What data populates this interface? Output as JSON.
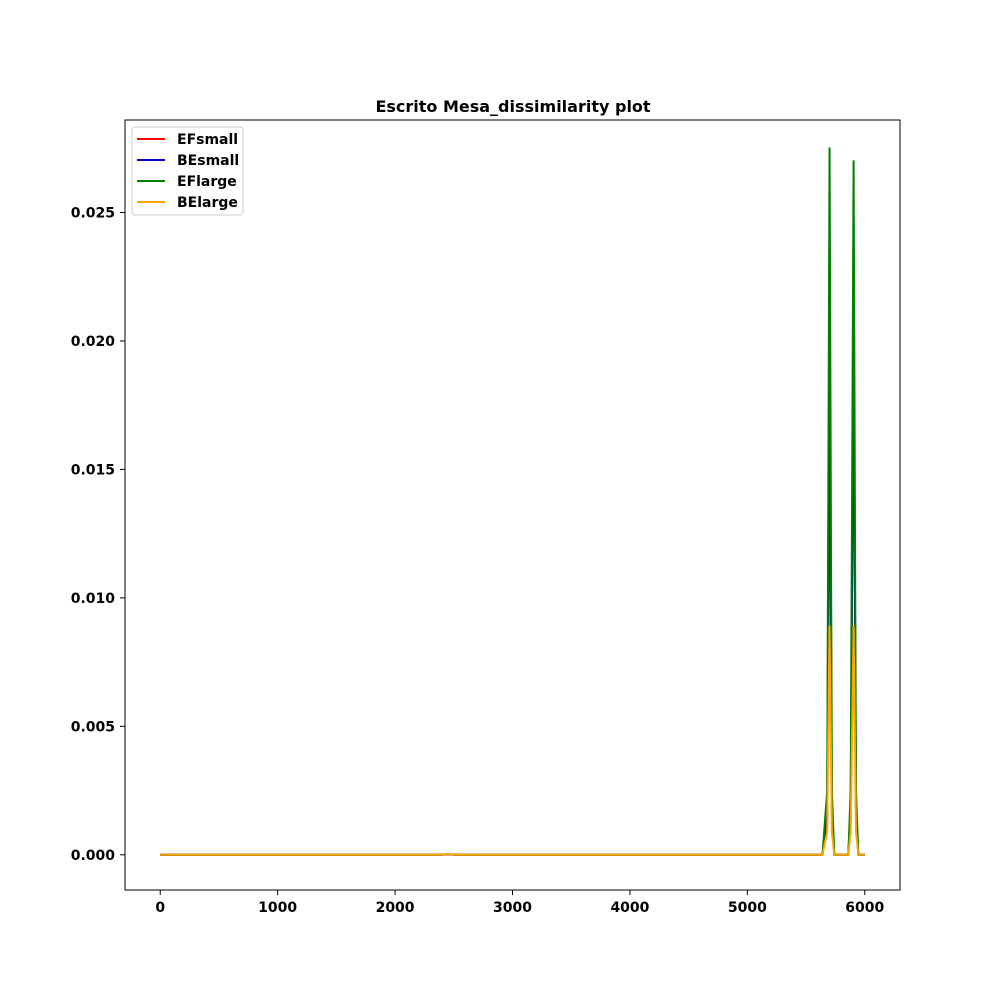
{
  "chart_data": {
    "type": "line",
    "title": "Escrito Mesa_dissimilarity plot",
    "xlabel": "",
    "ylabel": "",
    "xlim": [
      -300,
      6300
    ],
    "ylim": [
      -0.00137,
      0.0286
    ],
    "x_ticks": [
      0,
      1000,
      2000,
      3000,
      4000,
      5000,
      6000
    ],
    "x_tick_labels": [
      "0",
      "1000",
      "2000",
      "3000",
      "4000",
      "5000",
      "6000"
    ],
    "y_ticks": [
      0.0,
      0.005,
      0.01,
      0.015,
      0.02,
      0.025
    ],
    "y_tick_labels": [
      "0.000",
      "0.005",
      "0.010",
      "0.015",
      "0.020",
      "0.025"
    ],
    "grid": false,
    "legend_position": "top-left",
    "series": [
      {
        "name": "EFsmall",
        "color": "#ff0000",
        "x": [
          0,
          2400,
          2450,
          2500,
          5640,
          5680,
          5700,
          5720,
          5740,
          5860,
          5880,
          5905,
          5925,
          5945,
          6000
        ],
        "y": [
          0,
          0,
          2e-05,
          0,
          0,
          0.0015,
          0.0175,
          0.0015,
          0,
          0,
          0.0015,
          0.0205,
          0.0015,
          0,
          0
        ]
      },
      {
        "name": "BEsmall",
        "color": "#0000cc",
        "x": [
          0,
          2400,
          2450,
          2500,
          5640,
          5680,
          5700,
          5720,
          5740,
          5860,
          5880,
          5905,
          5925,
          5945,
          6000
        ],
        "y": [
          0,
          0,
          2e-05,
          0,
          0,
          0.0018,
          0.0205,
          0.0018,
          0,
          0,
          0.0018,
          0.0205,
          0.0018,
          0,
          0
        ]
      },
      {
        "name": "EFlarge",
        "color": "#008000",
        "x": [
          0,
          2400,
          2450,
          2500,
          5640,
          5680,
          5700,
          5720,
          5740,
          5860,
          5880,
          5905,
          5925,
          5945,
          6000
        ],
        "y": [
          0,
          0,
          3e-05,
          0,
          0,
          0.0025,
          0.0275,
          0.0025,
          0,
          0,
          0.0025,
          0.027,
          0.0025,
          0,
          0
        ]
      },
      {
        "name": "BElarge",
        "color": "#ffa500",
        "x": [
          0,
          2400,
          2450,
          2500,
          5640,
          5680,
          5700,
          5720,
          5740,
          5860,
          5880,
          5905,
          5925,
          5945,
          6000
        ],
        "y": [
          0,
          0,
          3e-05,
          0,
          0,
          0.0009,
          0.0089,
          0.0009,
          0,
          0,
          0.0009,
          0.0089,
          0.0009,
          0,
          0
        ]
      }
    ]
  }
}
